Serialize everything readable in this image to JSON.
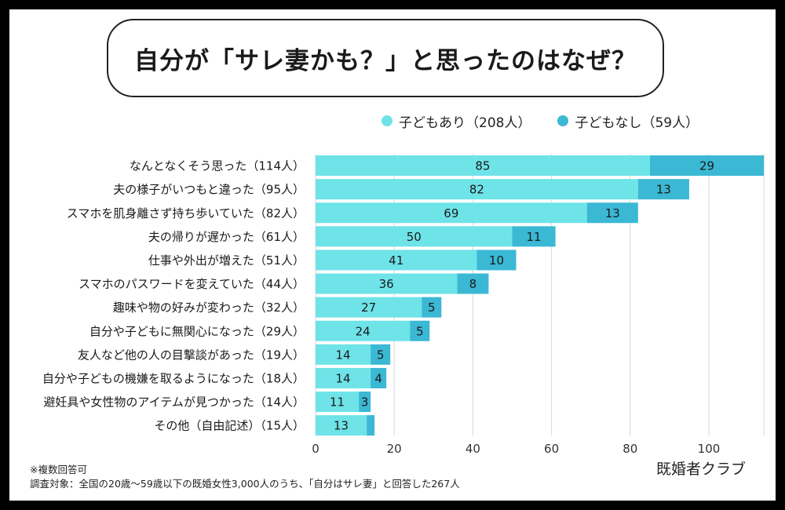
{
  "title": "自分が「サレ妻かも？」と思ったのはなぜ？",
  "legend": [
    {
      "label": "子どもあり（208人）",
      "color": "#6ee3e8"
    },
    {
      "label": "子どもなし（59人）",
      "color": "#3bb8d4"
    }
  ],
  "chart_data": {
    "type": "bar",
    "orientation": "horizontal",
    "stacked": true,
    "categories": [
      "なんとなくそう思った（114人）",
      "夫の様子がいつもと違った（95人）",
      "スマホを肌身離さず持ち歩いていた（82人）",
      "夫の帰りが遅かった（61人）",
      "仕事や外出が増えた（51人）",
      "スマホのパスワードを変えていた（44人）",
      "趣味や物の好みが変わった（32人）",
      "自分や子どもに無関心になった（29人）",
      "友人など他の人の目撃談があった（19人）",
      "自分や子どもの機嫌を取るようになった（18人）",
      "避妊具や女性物のアイテムが見つかった（14人）",
      "その他（自由記述）（15人）"
    ],
    "series": [
      {
        "name": "子どもあり（208人）",
        "color": "#6ee3e8",
        "values": [
          85,
          82,
          69,
          50,
          41,
          36,
          27,
          24,
          14,
          14,
          11,
          13
        ]
      },
      {
        "name": "子どもなし（59人）",
        "color": "#3bb8d4",
        "values": [
          29,
          13,
          13,
          11,
          10,
          8,
          5,
          5,
          5,
          4,
          3,
          2
        ]
      }
    ],
    "data_labels": [
      [
        "85",
        "82",
        "69",
        "50",
        "41",
        "36",
        "27",
        "24",
        "14",
        "14",
        "11",
        "13"
      ],
      [
        "29",
        "13",
        "13",
        "11",
        "10",
        "8",
        "5",
        "5",
        "5",
        "4",
        "3",
        ""
      ]
    ],
    "xlim": [
      0,
      114
    ],
    "xticks": [
      0,
      20,
      40,
      60,
      80,
      100
    ],
    "grid": true
  },
  "footnotes": [
    "※複数回答可",
    "調査対象：全国の20歳〜59歳以下の既婚女性3,000人のうち、「自分はサレ妻」と回答した267人"
  ],
  "brand": "既婚者クラブ"
}
